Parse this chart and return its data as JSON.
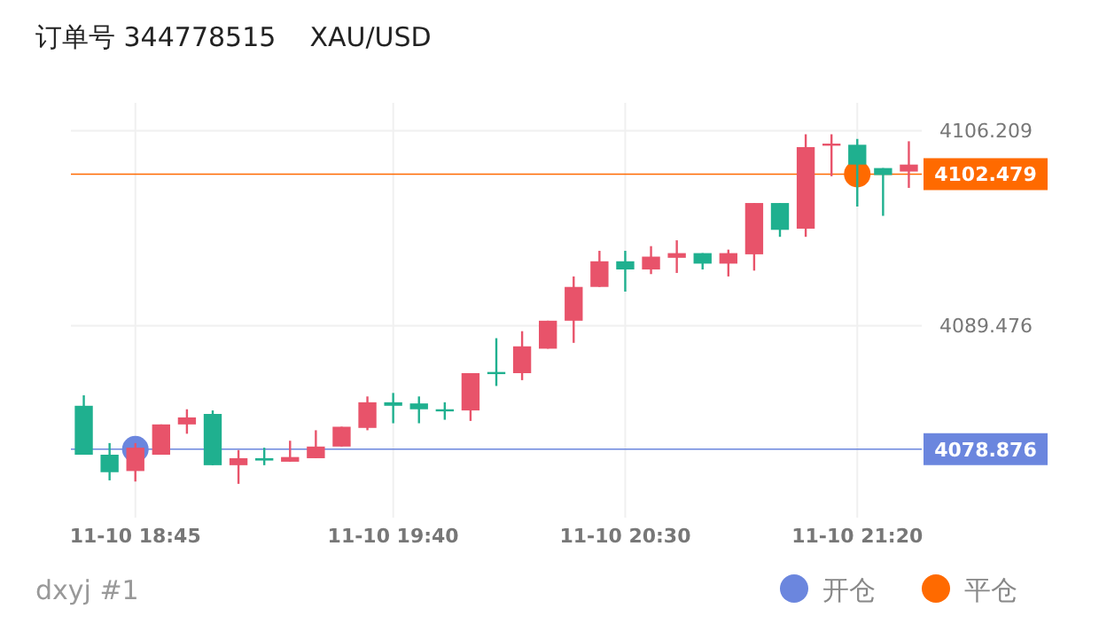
{
  "chart_data": {
    "type": "candlestick",
    "title": "订单号 344778515    XAU/USD",
    "categories": [
      null,
      null,
      "11-10 18:45",
      null,
      null,
      null,
      null,
      null,
      null,
      null,
      null,
      null,
      "11-10 19:40",
      null,
      null,
      null,
      null,
      null,
      null,
      null,
      null,
      "11-10 20:30",
      null,
      null,
      null,
      null,
      null,
      null,
      null,
      null,
      "11-10 21:20",
      null,
      null
    ],
    "ohlc": [
      [
        4082.6,
        4083.5,
        4078.4,
        4078.4
      ],
      [
        4078.4,
        4079.4,
        4076.2,
        4076.9
      ],
      [
        4077.0,
        4079.4,
        4076.1,
        4079.0
      ],
      [
        4078.4,
        4081.0,
        4078.4,
        4081.0
      ],
      [
        4081.0,
        4082.3,
        4080.2,
        4081.6
      ],
      [
        4081.9,
        4082.2,
        4077.5,
        4077.5
      ],
      [
        4077.5,
        4078.8,
        4075.9,
        4078.1
      ],
      [
        4078.1,
        4079.0,
        4077.5,
        4077.9
      ],
      [
        4077.8,
        4079.6,
        4077.8,
        4078.2
      ],
      [
        4078.1,
        4080.5,
        4078.1,
        4079.1
      ],
      [
        4079.1,
        4080.8,
        4079.1,
        4080.8
      ],
      [
        4080.7,
        4083.4,
        4080.5,
        4082.9
      ],
      [
        4082.9,
        4083.7,
        4081.1,
        4082.6
      ],
      [
        4082.8,
        4083.4,
        4081.1,
        4082.3
      ],
      [
        4082.3,
        4082.9,
        4081.4,
        4082.2
      ],
      [
        4082.2,
        4085.4,
        4081.3,
        4085.4
      ],
      [
        4085.5,
        4088.4,
        4084.3,
        4085.4
      ],
      [
        4085.4,
        4089.0,
        4084.8,
        4087.7
      ],
      [
        4087.5,
        4089.9,
        4087.5,
        4089.9
      ],
      [
        4089.9,
        4093.7,
        4088.0,
        4092.8
      ],
      [
        4092.8,
        4095.9,
        4092.8,
        4095.0
      ],
      [
        4095.0,
        4095.9,
        4092.4,
        4094.3
      ],
      [
        4094.3,
        4096.3,
        4093.9,
        4095.4
      ],
      [
        4095.3,
        4096.8,
        4094.0,
        4095.7
      ],
      [
        4095.7,
        4095.7,
        4094.3,
        4094.8
      ],
      [
        4094.8,
        4096.0,
        4093.7,
        4095.7
      ],
      [
        4095.6,
        4100.0,
        4094.2,
        4100.0
      ],
      [
        4100.0,
        4100.0,
        4097.1,
        4097.7
      ],
      [
        4097.8,
        4105.9,
        4097.1,
        4104.8
      ],
      [
        4105.0,
        4105.9,
        4102.3,
        4105.1
      ],
      [
        4105.0,
        4105.5,
        4099.7,
        4103.3
      ],
      [
        4103.0,
        4103.0,
        4098.9,
        4102.4
      ],
      [
        4102.7,
        4105.3,
        4101.3,
        4103.3
      ]
    ],
    "colors": [
      "#1fb08f",
      "#1fb08f",
      "#e8536a",
      "#e8536a",
      "#e8536a",
      "#1fb08f",
      "#e8536a",
      "#1fb08f",
      "#e8536a",
      "#e8536a",
      "#e8536a",
      "#e8536a",
      "#1fb08f",
      "#1fb08f",
      "#1fb08f",
      "#e8536a",
      "#1fb08f",
      "#e8536a",
      "#e8536a",
      "#e8536a",
      "#e8536a",
      "#1fb08f",
      "#e8536a",
      "#e8536a",
      "#1fb08f",
      "#e8536a",
      "#e8536a",
      "#1fb08f",
      "#e8536a",
      "#e8536a",
      "#1fb08f",
      "#1fb08f",
      "#e8536a"
    ],
    "series": [
      {
        "type": "scatter",
        "name": "开仓",
        "color": "#6b86de",
        "x": [
          "11-10 18:45"
        ],
        "values": [
          4078.876
        ]
      },
      {
        "type": "scatter",
        "name": "平仓",
        "color": "#ff6a00",
        "x": [
          "11-10 21:20"
        ],
        "values": [
          4102.479
        ]
      }
    ],
    "marker": "circle",
    "ylim": [
      4073,
      4108.6
    ],
    "yticks": [
      4089.476,
      4106.209
    ],
    "ref_lines": [
      {
        "axis": "y",
        "value": 4078.876,
        "label": "4078.876",
        "color": "#6b86de"
      },
      {
        "axis": "y",
        "value": 4102.479,
        "label": "4102.479",
        "color": "#ff6a00"
      }
    ],
    "grid": true,
    "legend": "bottom right",
    "annotations": [
      "dxyj #1"
    ]
  }
}
